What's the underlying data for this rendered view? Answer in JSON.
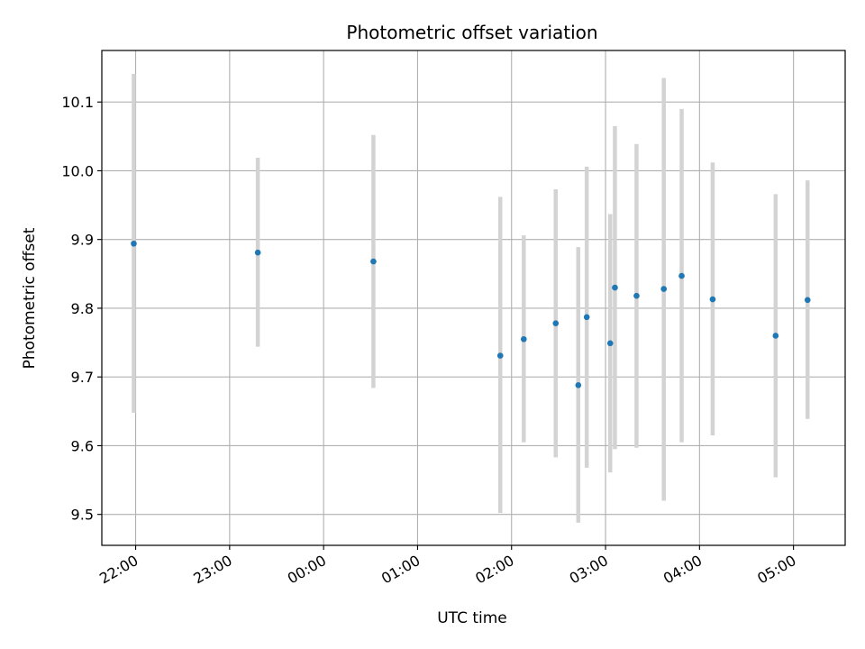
{
  "chart_data": {
    "type": "scatter",
    "title": "Photometric offset variation",
    "xlabel": "UTC time",
    "ylabel": "Photometric offset",
    "x_unit": "hours since 22:00 UTC",
    "xlim": [
      -0.36,
      7.55
    ],
    "ylim": [
      9.455,
      10.175
    ],
    "grid": true,
    "x_ticks": [
      {
        "value": 0,
        "label": "22:00"
      },
      {
        "value": 1,
        "label": "23:00"
      },
      {
        "value": 2,
        "label": "00:00"
      },
      {
        "value": 3,
        "label": "01:00"
      },
      {
        "value": 4,
        "label": "02:00"
      },
      {
        "value": 5,
        "label": "03:00"
      },
      {
        "value": 6,
        "label": "04:00"
      },
      {
        "value": 7,
        "label": "05:00"
      }
    ],
    "y_ticks": [
      {
        "value": 9.5,
        "label": "9.5"
      },
      {
        "value": 9.6,
        "label": "9.6"
      },
      {
        "value": 9.7,
        "label": "9.7"
      },
      {
        "value": 9.8,
        "label": "9.8"
      },
      {
        "value": 9.9,
        "label": "9.9"
      },
      {
        "value": 10.0,
        "label": "10.0"
      },
      {
        "value": 10.1,
        "label": "10.1"
      }
    ],
    "point_color": "#1f77b4",
    "errorbar_color": "#d3d3d3",
    "points": [
      {
        "x": -0.02,
        "y": 9.894,
        "low": 9.648,
        "high": 10.141
      },
      {
        "x": 1.3,
        "y": 9.881,
        "low": 9.744,
        "high": 10.019
      },
      {
        "x": 2.53,
        "y": 9.868,
        "low": 9.684,
        "high": 10.052
      },
      {
        "x": 3.88,
        "y": 9.731,
        "low": 9.502,
        "high": 9.962
      },
      {
        "x": 4.13,
        "y": 9.755,
        "low": 9.605,
        "high": 9.906
      },
      {
        "x": 4.47,
        "y": 9.778,
        "low": 9.583,
        "high": 9.973
      },
      {
        "x": 4.71,
        "y": 9.688,
        "low": 9.488,
        "high": 9.889
      },
      {
        "x": 4.8,
        "y": 9.787,
        "low": 9.568,
        "high": 10.006
      },
      {
        "x": 5.05,
        "y": 9.749,
        "low": 9.561,
        "high": 9.937
      },
      {
        "x": 5.1,
        "y": 9.83,
        "low": 9.595,
        "high": 10.065
      },
      {
        "x": 5.33,
        "y": 9.818,
        "low": 9.597,
        "high": 10.039
      },
      {
        "x": 5.62,
        "y": 9.828,
        "low": 9.52,
        "high": 10.135
      },
      {
        "x": 5.81,
        "y": 9.847,
        "low": 9.605,
        "high": 10.09
      },
      {
        "x": 6.14,
        "y": 9.813,
        "low": 9.615,
        "high": 10.012
      },
      {
        "x": 6.81,
        "y": 9.76,
        "low": 9.554,
        "high": 9.966
      },
      {
        "x": 7.15,
        "y": 9.812,
        "low": 9.639,
        "high": 9.986
      }
    ]
  }
}
